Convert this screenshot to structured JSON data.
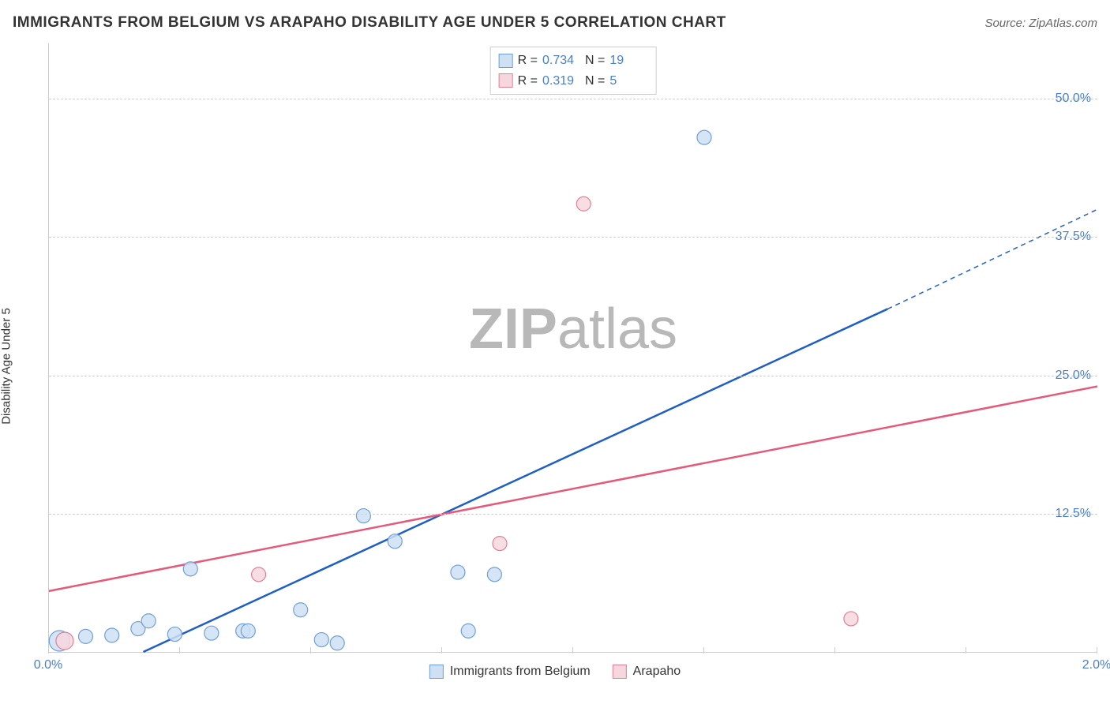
{
  "header": {
    "title": "IMMIGRANTS FROM BELGIUM VS ARAPAHO DISABILITY AGE UNDER 5 CORRELATION CHART",
    "source": "Source: ZipAtlas.com"
  },
  "watermark": {
    "zip": "ZIP",
    "atlas": "atlas"
  },
  "chart": {
    "type": "scatter",
    "ylabel": "Disability Age Under 5",
    "xlim": [
      0.0,
      2.0
    ],
    "ylim": [
      0.0,
      55.0
    ],
    "xticks": [
      {
        "v": 0.0,
        "label": "0.0%"
      },
      {
        "v": 0.25,
        "label": ""
      },
      {
        "v": 0.5,
        "label": ""
      },
      {
        "v": 0.75,
        "label": ""
      },
      {
        "v": 1.0,
        "label": ""
      },
      {
        "v": 1.25,
        "label": ""
      },
      {
        "v": 1.5,
        "label": ""
      },
      {
        "v": 1.75,
        "label": ""
      },
      {
        "v": 2.0,
        "label": "2.0%"
      }
    ],
    "yticks": [
      {
        "v": 12.5,
        "label": "12.5%"
      },
      {
        "v": 25.0,
        "label": "25.0%"
      },
      {
        "v": 37.5,
        "label": "37.5%"
      },
      {
        "v": 50.0,
        "label": "50.0%"
      }
    ],
    "grid_color": "#d0d0d0",
    "axis_color": "#cccccc",
    "background": "#ffffff",
    "tick_label_color": "#4a7ec9",
    "series": [
      {
        "name": "Immigrants from Belgium",
        "legend_label": "Immigrants from Belgium",
        "marker_fill": "#cfe0f5",
        "marker_stroke": "#6f9fd8",
        "marker_r": 9,
        "line_color": "#1f5fc4",
        "line_width": 2.5,
        "regression": {
          "x1": 0.18,
          "y1": 0.0,
          "x2": 1.6,
          "y2": 31.0
        },
        "regression_dash": {
          "x1": 1.6,
          "y1": 31.0,
          "x2": 2.0,
          "y2": 40.0
        },
        "stats": {
          "R": "0.734",
          "N": "19"
        },
        "points": [
          {
            "x": 0.02,
            "y": 1.0,
            "r": 13
          },
          {
            "x": 0.07,
            "y": 1.4
          },
          {
            "x": 0.12,
            "y": 1.5
          },
          {
            "x": 0.17,
            "y": 2.1
          },
          {
            "x": 0.19,
            "y": 2.8
          },
          {
            "x": 0.24,
            "y": 1.6
          },
          {
            "x": 0.27,
            "y": 7.5
          },
          {
            "x": 0.31,
            "y": 1.7
          },
          {
            "x": 0.37,
            "y": 1.9
          },
          {
            "x": 0.38,
            "y": 1.9
          },
          {
            "x": 0.48,
            "y": 3.8
          },
          {
            "x": 0.52,
            "y": 1.1
          },
          {
            "x": 0.55,
            "y": 0.8
          },
          {
            "x": 0.6,
            "y": 12.3
          },
          {
            "x": 0.66,
            "y": 10.0
          },
          {
            "x": 0.78,
            "y": 7.2
          },
          {
            "x": 0.8,
            "y": 1.9
          },
          {
            "x": 0.85,
            "y": 7.0
          },
          {
            "x": 1.25,
            "y": 46.5
          }
        ]
      },
      {
        "name": "Arapaho",
        "legend_label": "Arapaho",
        "marker_fill": "#f7d7de",
        "marker_stroke": "#e07f98",
        "marker_r": 9,
        "line_color": "#e35a7a",
        "line_width": 2.5,
        "regression": {
          "x1": 0.0,
          "y1": 5.5,
          "x2": 2.0,
          "y2": 24.0
        },
        "stats": {
          "R": "0.319",
          "N": "5"
        },
        "points": [
          {
            "x": 0.03,
            "y": 1.0,
            "r": 11
          },
          {
            "x": 0.4,
            "y": 7.0
          },
          {
            "x": 0.86,
            "y": 9.8
          },
          {
            "x": 1.02,
            "y": 40.5
          },
          {
            "x": 1.53,
            "y": 3.0
          }
        ]
      }
    ],
    "legend_top": {
      "rows": [
        {
          "swatch_fill": "#cfe0f5",
          "swatch_stroke": "#6f9fd8",
          "r_label": "R =",
          "r_val": "0.734",
          "n_label": "N =",
          "n_val": "19"
        },
        {
          "swatch_fill": "#f7d7de",
          "swatch_stroke": "#e07f98",
          "r_label": "R =",
          "r_val": "0.319",
          "n_label": "N =",
          "n_val": "5"
        }
      ]
    },
    "legend_bottom": [
      {
        "swatch_fill": "#cfe0f5",
        "swatch_stroke": "#6f9fd8",
        "label": "Immigrants from Belgium"
      },
      {
        "swatch_fill": "#f7d7de",
        "swatch_stroke": "#e07f98",
        "label": "Arapaho"
      }
    ]
  }
}
